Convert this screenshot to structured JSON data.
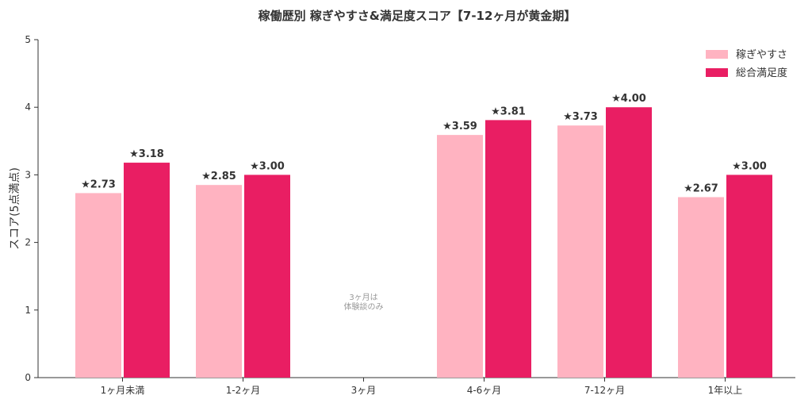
{
  "chart_data": {
    "type": "bar",
    "title": "稼働歴別 稼ぎやすさ&満足度スコア【7-12ヶ月が黄金期】",
    "xlabel": "",
    "ylabel": "スコア(5点満点)",
    "ylim": [
      0,
      5
    ],
    "yticks": [
      "0",
      "1",
      "2",
      "3",
      "4",
      "5"
    ],
    "categories": [
      "1ヶ月未満",
      "1-2ヶ月",
      "3ヶ月",
      "4-6ヶ月",
      "7-12ヶ月",
      "1年以上"
    ],
    "series": [
      {
        "name": "稼ぎやすさ",
        "color": "#ffb3c1",
        "values": [
          2.73,
          2.85,
          null,
          3.59,
          3.73,
          2.67
        ],
        "labels": [
          "★2.73",
          "★2.85",
          "",
          "★3.59",
          "★3.73",
          "★2.67"
        ]
      },
      {
        "name": "総合満足度",
        "color": "#e91e63",
        "values": [
          3.18,
          3.0,
          null,
          3.81,
          4.0,
          3.0
        ],
        "labels": [
          "★3.18",
          "★3.00",
          "",
          "★3.81",
          "★4.00",
          "★3.00"
        ]
      }
    ],
    "annotations": [
      {
        "category": "3ヶ月",
        "lines": [
          "3ヶ月は",
          "体験談のみ"
        ]
      }
    ],
    "legend_position": "top-right",
    "grid": false
  }
}
